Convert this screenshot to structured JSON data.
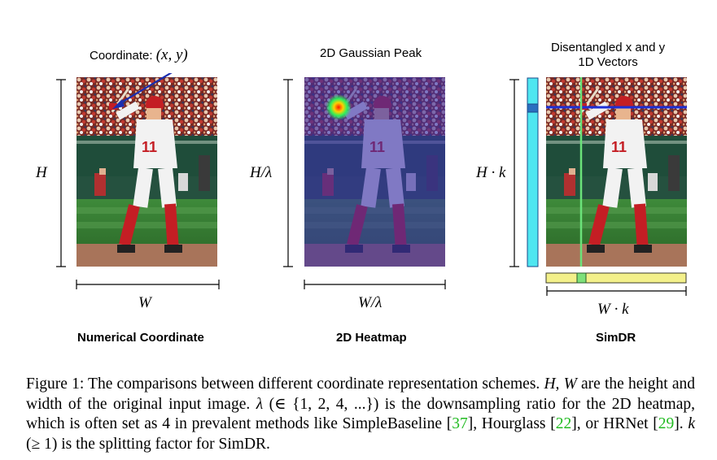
{
  "panels": [
    {
      "title": "Numerical Coordinate",
      "top_label": "Coordinate:",
      "top_math": "(x, y)",
      "height_label": "H",
      "width_label": "W"
    },
    {
      "title": "2D Heatmap",
      "top_label": "2D Gaussian Peak",
      "height_label": "H/λ",
      "width_label": "W/λ"
    },
    {
      "title": "SimDR",
      "top_label_line1": "Disentangled x and y",
      "top_label_line2": "1D Vectors",
      "height_label": "H · k",
      "width_label": "W · k"
    }
  ],
  "caption": {
    "p1": "Figure 1: The comparisons between different coordinate representation schemes. ",
    "m1": "H, W",
    "p2": " are the height and width of the original input image. ",
    "m2": "λ",
    "p3": " (∈ {1, 2, 4, ...}) is the downsampling ratio for the 2D heatmap, which is often set as 4 in prevalent methods like SimpleBaseline [",
    "c1": "37",
    "p4": "], Hourglass [",
    "c2": "22",
    "p5": "], or HRNet [",
    "c3": "29",
    "p6": "]. ",
    "m3": "k",
    "p7": " (≥ 1) is the splitting factor for SimDR."
  },
  "colors": {
    "arrow": "#1a2db0",
    "heat_overlay": "#3a2fa8",
    "vector_cyan": "#4fe6f0",
    "vector_yellow": "#f3f08a",
    "x_line": "#1c2fd6",
    "y_line": "#6be37a"
  }
}
